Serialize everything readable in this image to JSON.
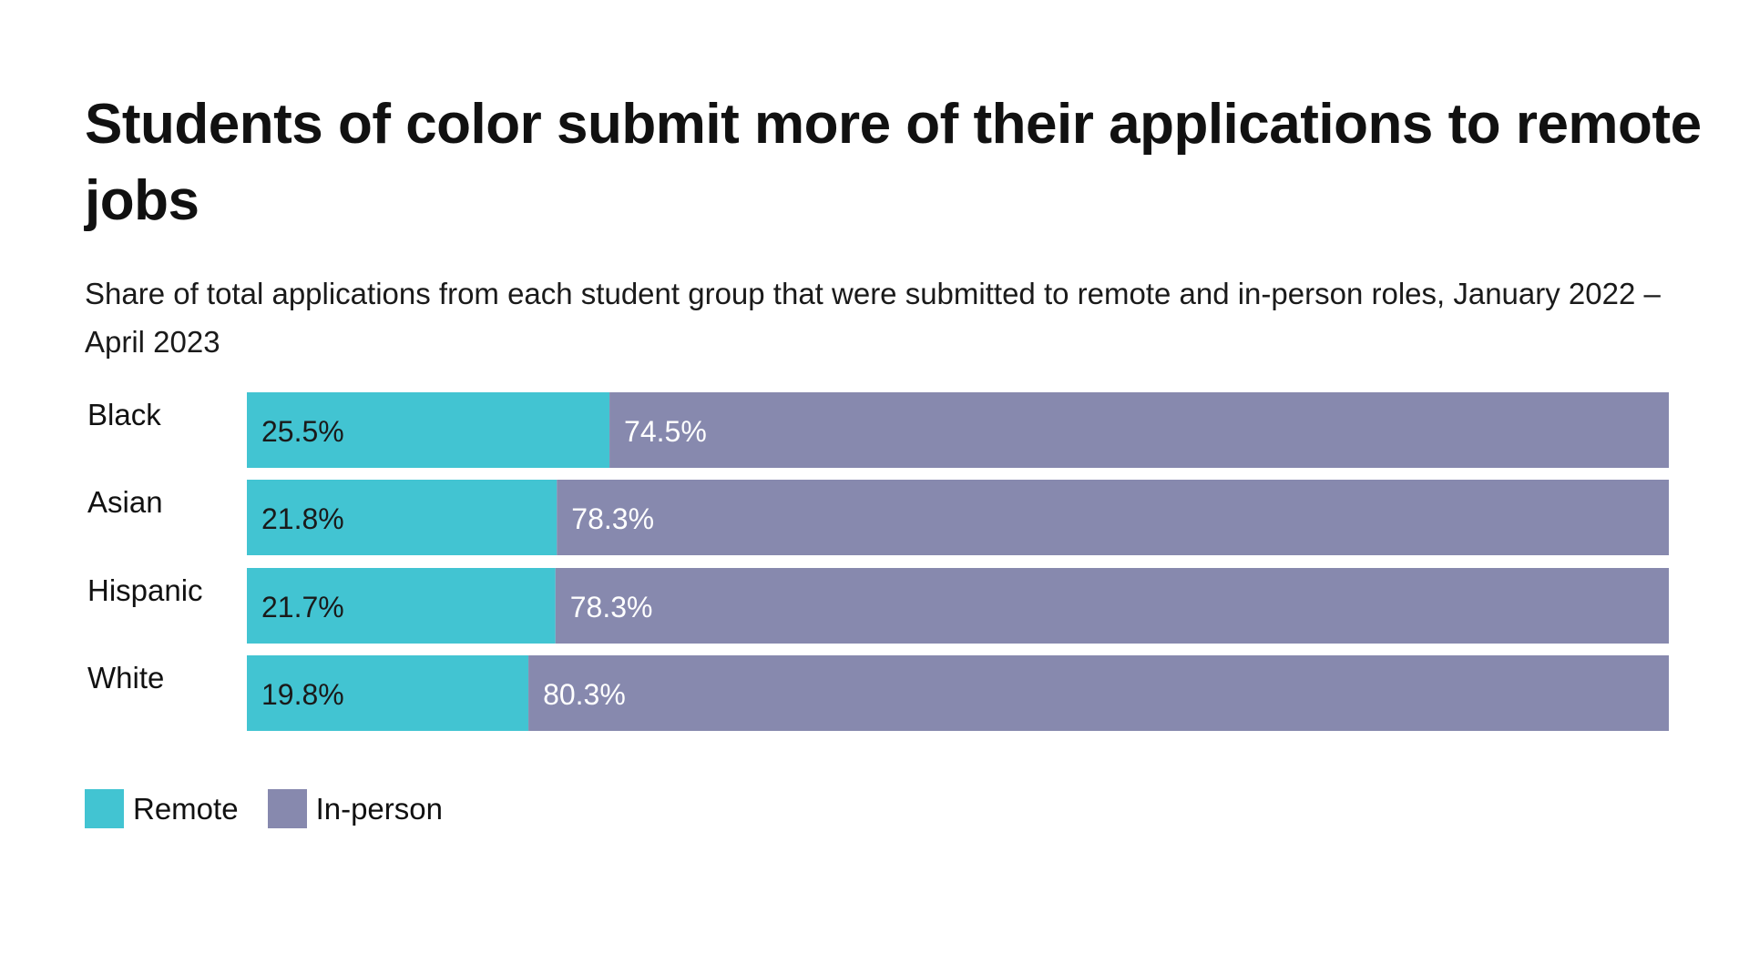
{
  "chart_data": {
    "type": "bar",
    "orientation": "horizontal",
    "stacked": true,
    "title": "Students of color submit more of their applications to remote jobs",
    "subtitle": "Share of total applications from each student group that were submitted to remote and in-person roles, January 2022 – April 2023",
    "categories": [
      "Black",
      "Asian",
      "Hispanic",
      "White"
    ],
    "series": [
      {
        "name": "Remote",
        "color": "#42C4D2",
        "values": [
          25.5,
          21.8,
          21.7,
          19.8
        ],
        "labels": [
          "25.5%",
          "21.8%",
          "21.7%",
          "19.8%"
        ]
      },
      {
        "name": "In-person",
        "color": "#8789AE",
        "values": [
          74.5,
          78.3,
          78.3,
          80.3
        ],
        "labels": [
          "74.5%",
          "78.3%",
          "78.3%",
          "80.3%"
        ]
      }
    ],
    "xlim": [
      0,
      100
    ],
    "grid": false,
    "legend_position": "bottom-left"
  }
}
